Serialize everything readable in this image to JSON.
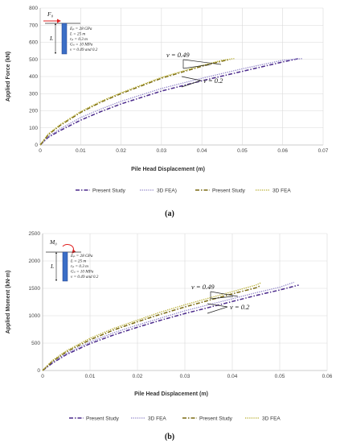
{
  "chart_data": [
    {
      "type": "line",
      "xlabel": "Pile Head Displacement (m)",
      "ylabel": "Applied Force (kN)",
      "xlim": [
        0,
        0.07
      ],
      "ylim": [
        0,
        800
      ],
      "xticks": [
        "0",
        "0.01",
        "0.02",
        "0.03",
        "0.04",
        "0.05",
        "0.06",
        "0.07"
      ],
      "yticks": [
        "0",
        "100",
        "200",
        "300",
        "400",
        "500",
        "600",
        "700",
        "800"
      ],
      "grid": true,
      "legend_position": "bottom",
      "series": [
        {
          "name": "Present Study",
          "color": "#4b2a8c",
          "style": "dashdot",
          "x": [
            0,
            0.002,
            0.005,
            0.01,
            0.015,
            0.02,
            0.03,
            0.04,
            0.05,
            0.06,
            0.064
          ],
          "y": [
            0,
            45,
            85,
            145,
            195,
            240,
            315,
            375,
            430,
            485,
            505
          ]
        },
        {
          "name": "3D FEA)",
          "color": "#8f84c8",
          "style": "dotted",
          "x": [
            0,
            0.002,
            0.005,
            0.01,
            0.015,
            0.02,
            0.03,
            0.04,
            0.05,
            0.06,
            0.065
          ],
          "y": [
            0,
            50,
            95,
            160,
            210,
            255,
            330,
            390,
            445,
            495,
            505
          ]
        },
        {
          "name": "Present Study",
          "color": "#7a6a12",
          "style": "dashdot",
          "x": [
            0,
            0.002,
            0.005,
            0.01,
            0.015,
            0.02,
            0.025,
            0.03,
            0.035,
            0.04,
            0.045,
            0.047
          ],
          "y": [
            0,
            60,
            115,
            190,
            250,
            300,
            345,
            390,
            425,
            460,
            490,
            500
          ]
        },
        {
          "name": "3D FEA",
          "color": "#b7ad2c",
          "style": "dotted",
          "x": [
            0,
            0.002,
            0.005,
            0.01,
            0.015,
            0.02,
            0.025,
            0.03,
            0.035,
            0.04,
            0.045,
            0.048
          ],
          "y": [
            0,
            65,
            120,
            195,
            255,
            305,
            350,
            395,
            430,
            465,
            495,
            505
          ]
        }
      ],
      "annotations": [
        {
          "text": "v = 0.49",
          "x": 0.035,
          "y": 545
        },
        {
          "text": "v = 0.2",
          "x": 0.043,
          "y": 355
        }
      ],
      "inset": {
        "load_label": "F₀",
        "length_label": "L",
        "lines": [
          "Eₚ = 28 GPa",
          "L = 25 m",
          "rₚ = 0.3 m",
          "Gₛ = 10 MPa",
          "v = 0.49 and 0.2"
        ]
      },
      "caption": "(a)"
    },
    {
      "type": "line",
      "xlabel": "Pile Head Displacement (m)",
      "ylabel": "Applied Moment (kN·m)",
      "xlim": [
        0,
        0.06
      ],
      "ylim": [
        0,
        2500
      ],
      "xticks": [
        "0",
        "0.01",
        "0.02",
        "0.03",
        "0.04",
        "0.05",
        "0.06"
      ],
      "yticks": [
        "0",
        "500",
        "1000",
        "1500",
        "2000",
        "2500"
      ],
      "grid": true,
      "legend_position": "bottom",
      "series": [
        {
          "name": "Present Study",
          "color": "#4b2a8c",
          "style": "dashdot",
          "x": [
            0,
            0.002,
            0.005,
            0.01,
            0.015,
            0.02,
            0.025,
            0.03,
            0.035,
            0.04,
            0.045,
            0.05,
            0.054
          ],
          "y": [
            0,
            130,
            290,
            490,
            650,
            790,
            920,
            1040,
            1150,
            1260,
            1370,
            1470,
            1560
          ]
        },
        {
          "name": "3D FEA",
          "color": "#8f84c8",
          "style": "dotted",
          "x": [
            0,
            0.002,
            0.005,
            0.01,
            0.015,
            0.02,
            0.025,
            0.03,
            0.035,
            0.04,
            0.045,
            0.05,
            0.053
          ],
          "y": [
            0,
            150,
            310,
            520,
            690,
            830,
            960,
            1090,
            1200,
            1310,
            1420,
            1520,
            1610
          ]
        },
        {
          "name": "Present Study",
          "color": "#7a6a12",
          "style": "dashdot",
          "x": [
            0,
            0.002,
            0.005,
            0.01,
            0.015,
            0.02,
            0.025,
            0.03,
            0.035,
            0.04,
            0.045,
            0.046
          ],
          "y": [
            0,
            160,
            340,
            560,
            740,
            890,
            1030,
            1160,
            1280,
            1400,
            1510,
            1550
          ]
        },
        {
          "name": "3D FEA",
          "color": "#b7ad2c",
          "style": "dotted",
          "x": [
            0,
            0.002,
            0.005,
            0.01,
            0.015,
            0.02,
            0.025,
            0.03,
            0.035,
            0.04,
            0.045,
            0.046
          ],
          "y": [
            0,
            180,
            360,
            590,
            770,
            920,
            1070,
            1200,
            1320,
            1440,
            1560,
            1600
          ]
        }
      ],
      "annotations": [
        {
          "text": "v = 0.49",
          "x": 0.03,
          "y": 1680
        },
        {
          "text": "v = 0.2",
          "x": 0.038,
          "y": 1130
        }
      ],
      "inset": {
        "load_label": "M₀",
        "length_label": "L",
        "lines": [
          "Eₚ = 28 GPa",
          "L = 25 m",
          "rₚ = 0.3 m",
          "Gₛ = 10 MPa",
          "v = 0.49 and 0.2"
        ]
      },
      "caption": "(b)"
    }
  ]
}
